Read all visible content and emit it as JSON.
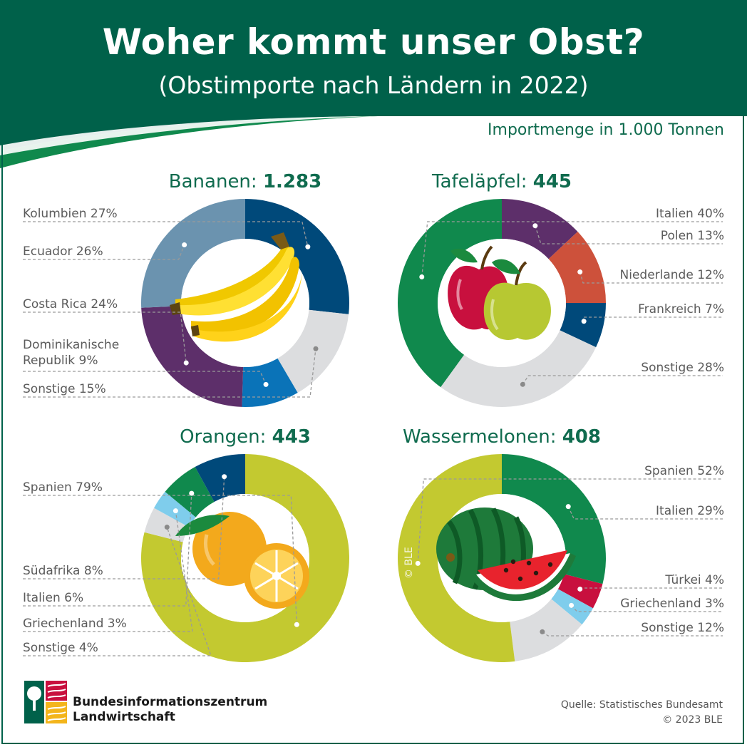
{
  "header": {
    "title": "Woher kommt unser Obst?",
    "subtitle": "(Obstimporte nach Ländern in 2022)"
  },
  "unit_label": "Importmenge in 1.000 Tonnen",
  "colors": {
    "brand_green": "#00614a",
    "title_green": "#0f6b4e",
    "label_grey": "#5b5b5b",
    "sonstige_grey": "#dcdddf"
  },
  "chart_data": [
    {
      "type": "pie",
      "title_name": "Bananen:",
      "title_value": "1.283",
      "unit": "1.000 Tonnen",
      "illustration": "banana-icon",
      "slices": [
        {
          "label": "Kolumbien 27%",
          "value": 27,
          "color": "#00497a"
        },
        {
          "label": "Sonstige 15%",
          "value": 15,
          "color": "#dcdddf"
        },
        {
          "label": "Dominikanische Republik 9%",
          "value": 9,
          "color": "#0a73b8"
        },
        {
          "label": "Costa Rica 24%",
          "value": 24,
          "color": "#5d2f6a"
        },
        {
          "label": "Ecuador 26%",
          "value": 26,
          "color": "#6b93af"
        }
      ]
    },
    {
      "type": "pie",
      "title_name": "Tafeläpfel:",
      "title_value": "445",
      "unit": "1.000 Tonnen",
      "illustration": "apple-icon",
      "slices": [
        {
          "label": "Polen 13%",
          "value": 13,
          "color": "#5d2f6a"
        },
        {
          "label": "Niederlande 12%",
          "value": 12,
          "color": "#cd513b"
        },
        {
          "label": "Frankreich 7%",
          "value": 7,
          "color": "#00497a"
        },
        {
          "label": "Sonstige 28%",
          "value": 28,
          "color": "#dcdddf"
        },
        {
          "label": "Italien 40%",
          "value": 40,
          "color": "#10894d"
        }
      ]
    },
    {
      "type": "pie",
      "title_name": "Orangen:",
      "title_value": "443",
      "unit": "1.000 Tonnen",
      "illustration": "orange-icon",
      "slices": [
        {
          "label": "Spanien 79%",
          "value": 79,
          "color": "#c3c930"
        },
        {
          "label": "Sonstige 4%",
          "value": 4,
          "color": "#dcdddf"
        },
        {
          "label": "Griechenland 3%",
          "value": 3,
          "color": "#7fcdec"
        },
        {
          "label": "Italien 6%",
          "value": 6,
          "color": "#10894d"
        },
        {
          "label": "Südafrika 8%",
          "value": 8,
          "color": "#00497a"
        }
      ]
    },
    {
      "type": "pie",
      "title_name": "Wassermelonen:",
      "title_value": "408",
      "unit": "1.000 Tonnen",
      "illustration": "watermelon-icon",
      "slices": [
        {
          "label": "Italien 29%",
          "value": 29,
          "color": "#10894d"
        },
        {
          "label": "Türkei 4%",
          "value": 4,
          "color": "#c8103e"
        },
        {
          "label": "Griechenland 3%",
          "value": 3,
          "color": "#7fcdec"
        },
        {
          "label": "Sonstige 12%",
          "value": 12,
          "color": "#dcdddf"
        },
        {
          "label": "Spanien 52%",
          "value": 52,
          "color": "#c3c930"
        }
      ]
    }
  ],
  "footer": {
    "org_line1": "Bundesinformationszentrum",
    "org_line2": "Landwirtschaft",
    "source": "Quelle: Statistisches Bundesamt",
    "copyright": "© 2023 BLE",
    "watermark": "© BLE"
  }
}
